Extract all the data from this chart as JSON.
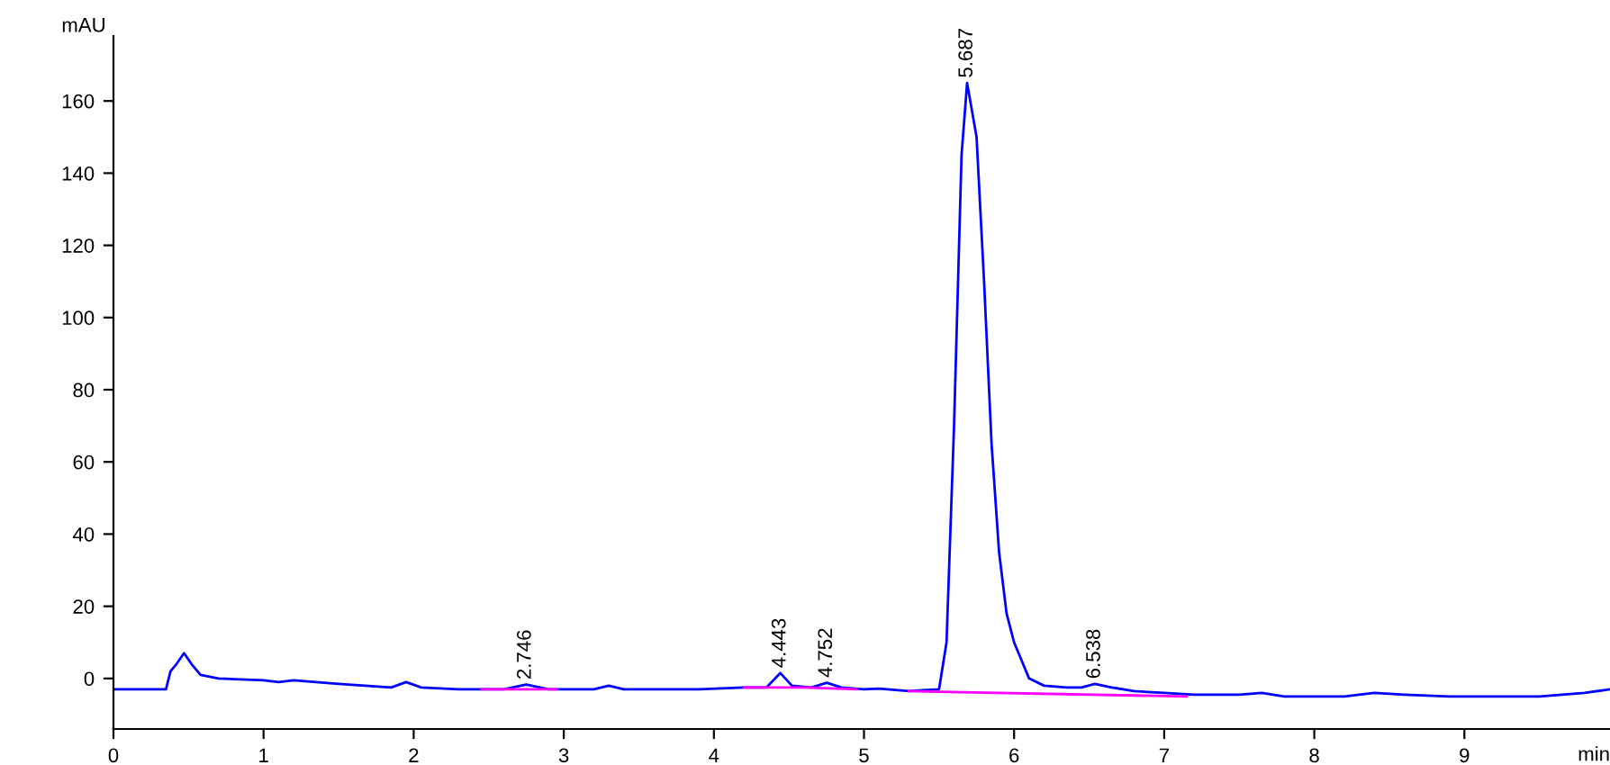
{
  "chart_data": {
    "type": "line",
    "xlabel": "min",
    "ylabel": "mAU",
    "xlim": [
      0,
      9.97
    ],
    "xticks": [
      0,
      1,
      2,
      3,
      4,
      5,
      6,
      7,
      8,
      9
    ],
    "ylim": [
      -14,
      178
    ],
    "yticks": [
      0,
      20,
      40,
      60,
      80,
      100,
      120,
      140,
      160
    ],
    "grid": false,
    "legend": false,
    "marker": "none",
    "line_style": "solid",
    "series": [
      {
        "color": "#0000ff",
        "x": [
          0,
          0.35,
          0.38,
          0.42,
          0.47,
          0.52,
          0.58,
          0.7,
          1.0,
          1.1,
          1.2,
          1.5,
          1.85,
          1.95,
          2.05,
          2.3,
          2.6,
          2.75,
          2.9,
          3.2,
          3.3,
          3.4,
          3.9,
          4.2,
          4.35,
          4.443,
          4.52,
          4.65,
          4.752,
          4.85,
          5.0,
          5.1,
          5.3,
          5.5,
          5.55,
          5.6,
          5.65,
          5.687,
          5.75,
          5.8,
          5.85,
          5.9,
          5.95,
          6.0,
          6.05,
          6.1,
          6.2,
          6.35,
          6.45,
          6.538,
          6.65,
          6.8,
          7.0,
          7.2,
          7.5,
          7.65,
          7.8,
          8.2,
          8.4,
          8.6,
          8.9,
          9.2,
          9.5,
          9.8,
          9.97
        ],
        "values": [
          -3,
          -3,
          2,
          4,
          7,
          4,
          1,
          0,
          -0.5,
          -1,
          -0.5,
          -1.5,
          -2.5,
          -1,
          -2.5,
          -3,
          -3,
          -1.7,
          -3,
          -3,
          -2,
          -3,
          -3,
          -2.5,
          -2.5,
          1.5,
          -2,
          -2.5,
          -1.2,
          -2.5,
          -3,
          -2.8,
          -3.5,
          -3,
          10,
          70,
          145,
          165,
          150,
          110,
          65,
          35,
          18,
          10,
          5,
          0,
          -2,
          -2.5,
          -2.5,
          -1.5,
          -2.5,
          -3.5,
          -4,
          -4.5,
          -4.5,
          -4,
          -5,
          -5,
          -4,
          -4.5,
          -5,
          -5,
          -5,
          -4,
          -3
        ]
      },
      {
        "color": "#ff00ff",
        "x": [
          2.45,
          2.95
        ],
        "values": [
          -3,
          -3
        ]
      },
      {
        "color": "#ff00ff",
        "x": [
          4.2,
          4.6,
          4.95
        ],
        "values": [
          -2.5,
          -2.5,
          -3
        ]
      },
      {
        "color": "#ff00ff",
        "x": [
          5.3,
          7.15
        ],
        "values": [
          -3.5,
          -5
        ]
      }
    ],
    "annotations": [
      {
        "text": "2.746",
        "x": 2.746,
        "y": -1.7
      },
      {
        "text": "4.443",
        "x": 4.443,
        "y": 1.5
      },
      {
        "text": "4.752",
        "x": 4.752,
        "y": -1.2
      },
      {
        "text": "5.687",
        "x": 5.687,
        "y": 165
      },
      {
        "text": "6.538",
        "x": 6.538,
        "y": -1.5
      }
    ]
  }
}
